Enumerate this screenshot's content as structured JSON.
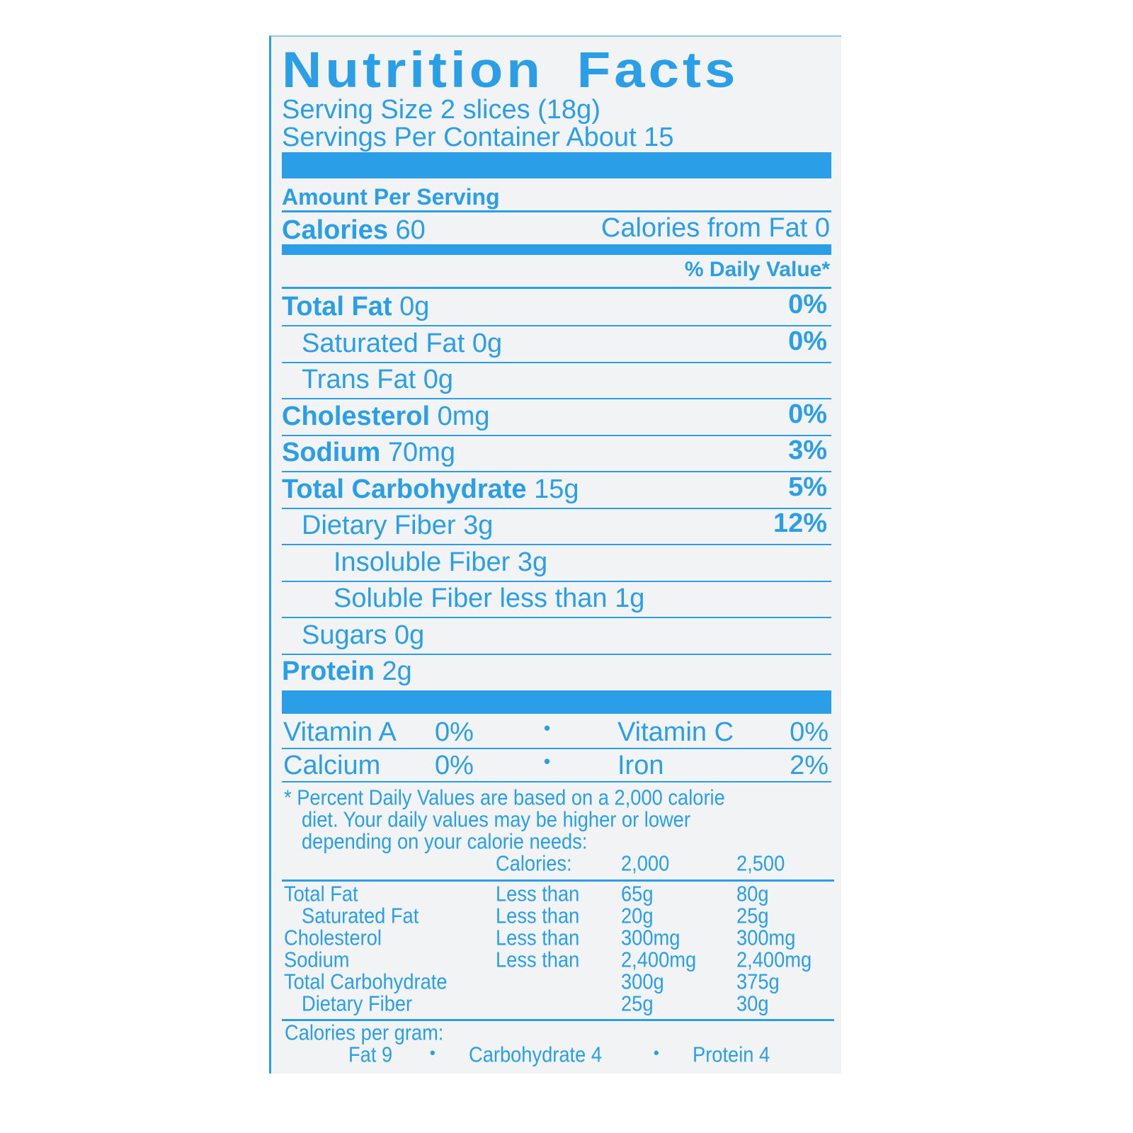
{
  "title": "Nutrition Facts",
  "serving_size": "Serving Size 2 slices (18g)",
  "servings_per_container": "Servings Per Container About 15",
  "amount_per_serving": "Amount Per Serving",
  "calories": {
    "label": "Calories",
    "value": "60",
    "from_fat": "Calories from Fat 0"
  },
  "daily_value_header": "% Daily Value*",
  "nutrients": [
    {
      "name": "Total Fat",
      "amount": "0g",
      "dv": "0%",
      "bold": true,
      "indent": 0
    },
    {
      "name": "Saturated Fat",
      "amount": "0g",
      "dv": "0%",
      "bold": false,
      "indent": 1
    },
    {
      "name": "Trans Fat",
      "amount": "0g",
      "dv": "",
      "bold": false,
      "indent": 1
    },
    {
      "name": "Cholesterol",
      "amount": "0mg",
      "dv": "0%",
      "bold": true,
      "indent": 0
    },
    {
      "name": "Sodium",
      "amount": "70mg",
      "dv": "3%",
      "bold": true,
      "indent": 0
    },
    {
      "name": "Total Carbohydrate",
      "amount": "15g",
      "dv": "5%",
      "bold": true,
      "indent": 0
    },
    {
      "name": "Dietary Fiber",
      "amount": "3g",
      "dv": "12%",
      "bold": false,
      "indent": 1
    },
    {
      "name": "Insoluble Fiber",
      "amount": "3g",
      "dv": "",
      "bold": false,
      "indent": 2
    },
    {
      "name": "Soluble Fiber",
      "amount": "less than 1g",
      "dv": "",
      "bold": false,
      "indent": 2
    },
    {
      "name": "Sugars",
      "amount": "0g",
      "dv": "",
      "bold": false,
      "indent": 1
    },
    {
      "name": "Protein",
      "amount": "2g",
      "dv": "",
      "bold": true,
      "indent": 0
    }
  ],
  "vitamins": [
    [
      {
        "name": "Vitamin A",
        "dv": "0%"
      },
      {
        "name": "Vitamin C",
        "dv": "0%"
      }
    ],
    [
      {
        "name": "Calcium",
        "dv": "0%"
      },
      {
        "name": "Iron",
        "dv": "2%"
      }
    ]
  ],
  "bullet": "•",
  "footnote": [
    "* Percent Daily Values are based on a 2,000 calorie",
    "diet. Your daily values may be higher or lower",
    "depending on your calorie needs:"
  ],
  "reference_table": {
    "header": [
      "Calories:",
      "2,000",
      "2,500"
    ],
    "rows": [
      {
        "name": "Total Fat",
        "qual": "Less than",
        "v1": "65g",
        "v2": "80g",
        "indent": 0
      },
      {
        "name": "Saturated Fat",
        "qual": "Less than",
        "v1": "20g",
        "v2": "25g",
        "indent": 1
      },
      {
        "name": "Cholesterol",
        "qual": "Less than",
        "v1": "300mg",
        "v2": "300mg",
        "indent": 0
      },
      {
        "name": "Sodium",
        "qual": "Less than",
        "v1": "2,400mg",
        "v2": "2,400mg",
        "indent": 0
      },
      {
        "name": "Total Carbohydrate",
        "qual": "",
        "v1": "300g",
        "v2": "375g",
        "indent": 0
      },
      {
        "name": "Dietary Fiber",
        "qual": "",
        "v1": "25g",
        "v2": "30g",
        "indent": 1
      }
    ]
  },
  "calories_per_gram": {
    "label": "Calories per gram:",
    "items": [
      "Fat 9",
      "Carbohydrate 4",
      "Protein 4"
    ]
  },
  "colors": {
    "ink": "#2a9fe8",
    "label_background": "#f1f3f4"
  }
}
